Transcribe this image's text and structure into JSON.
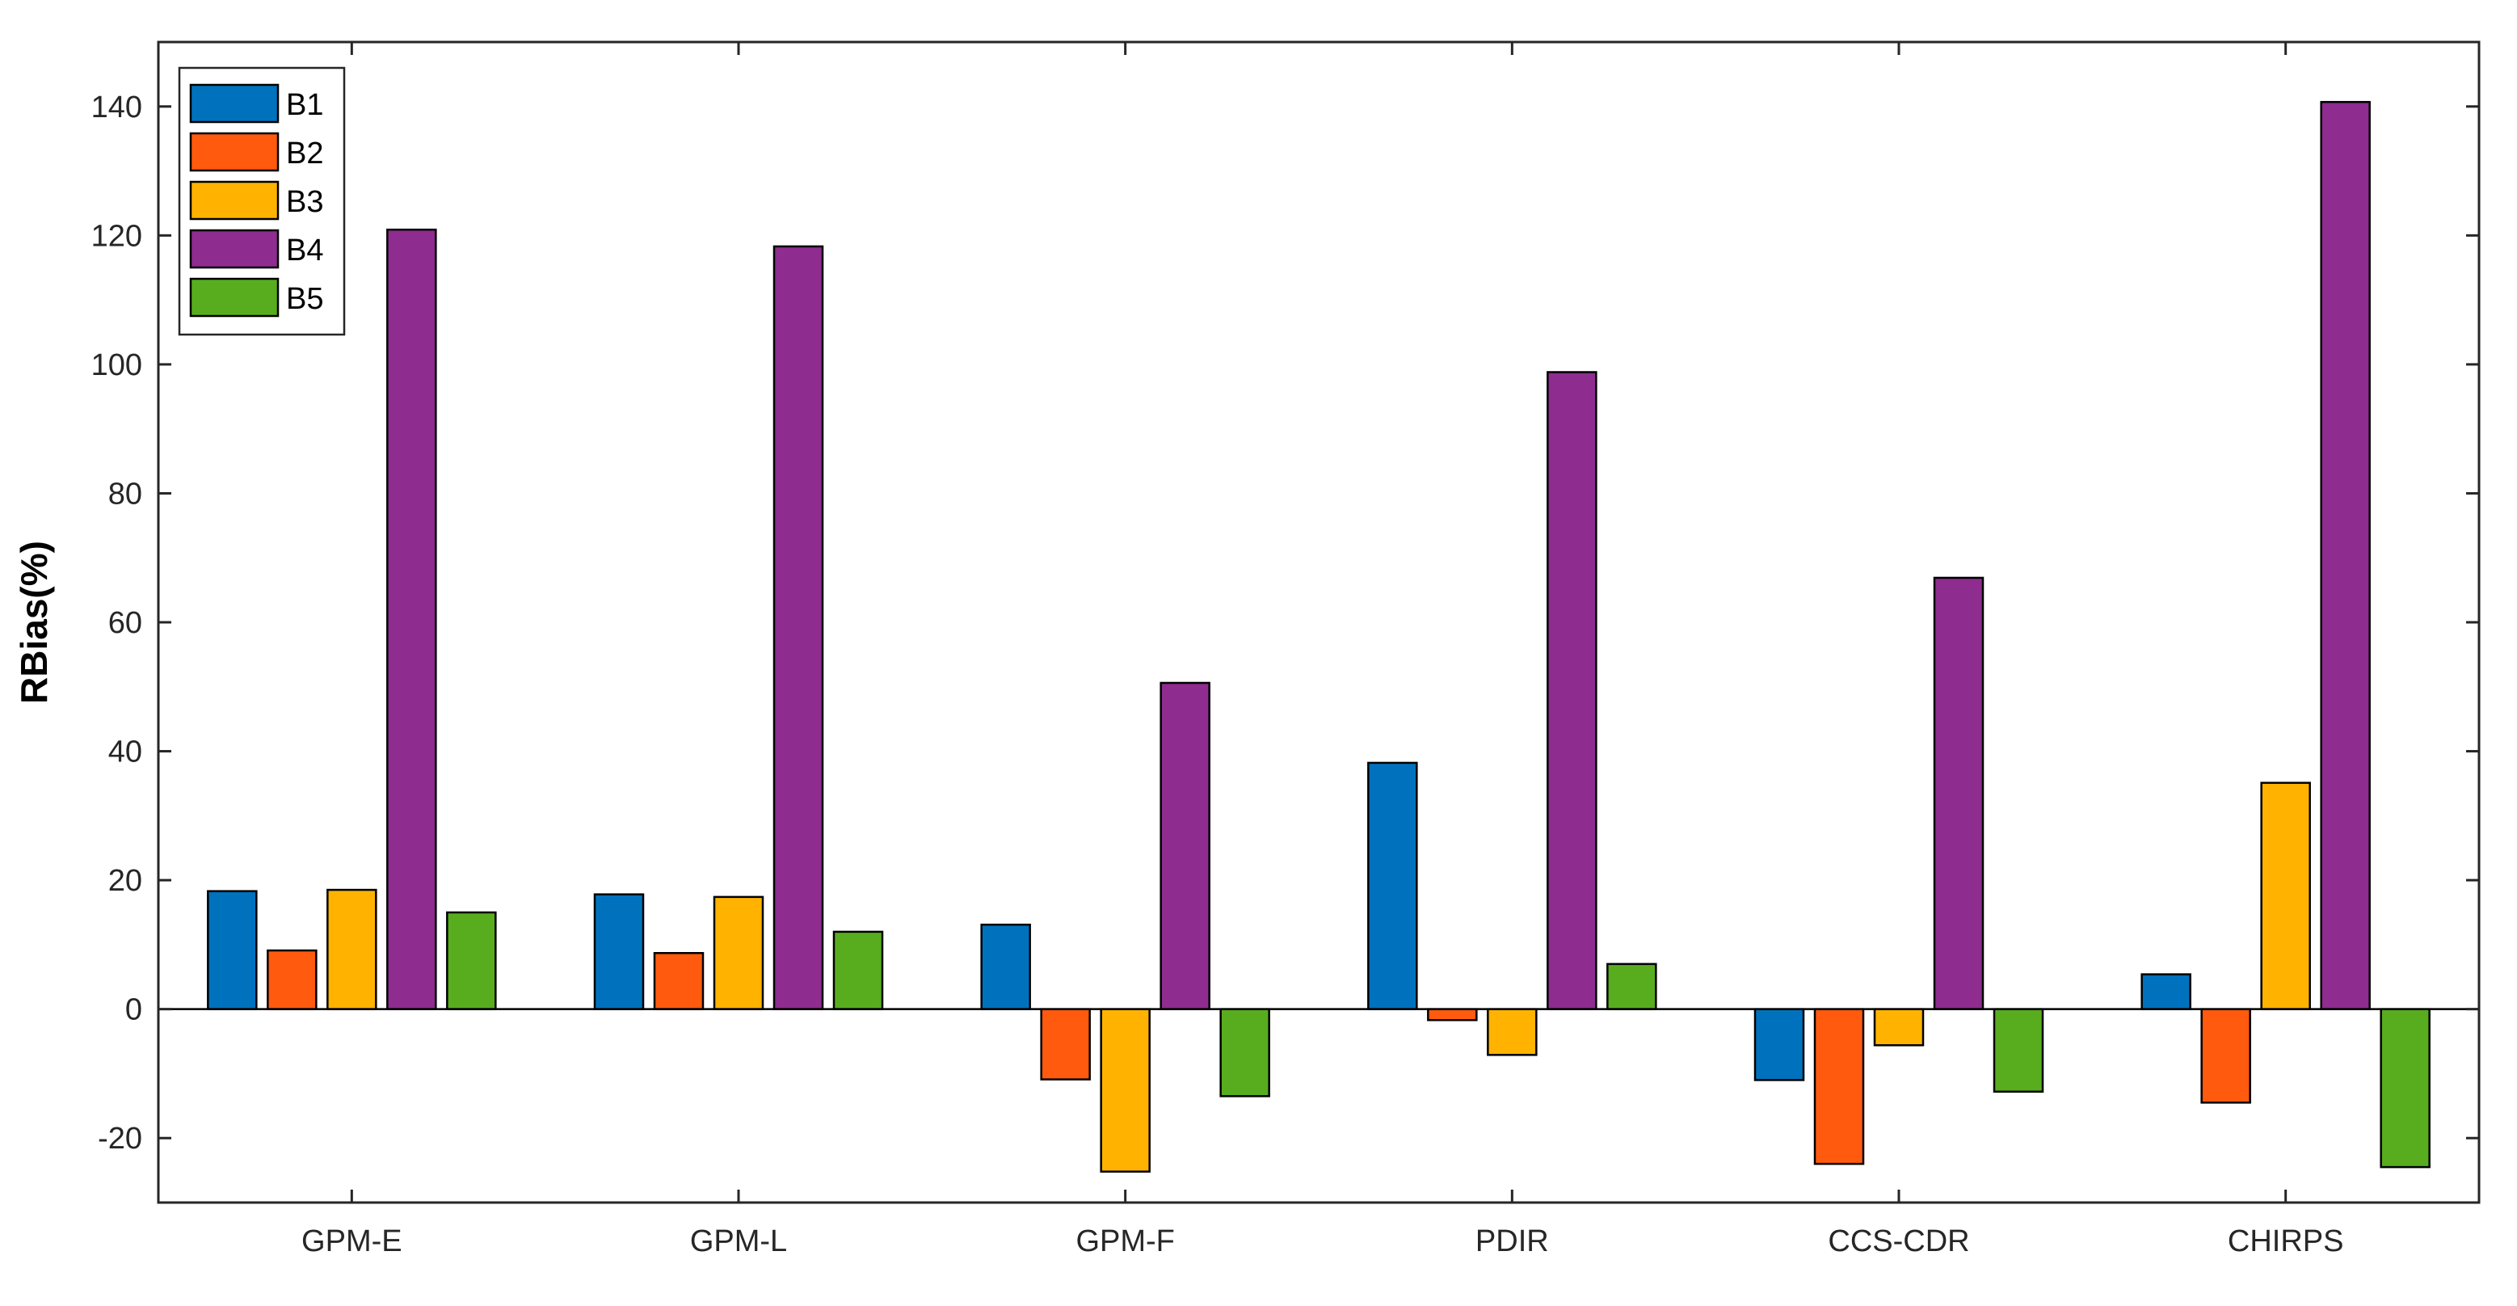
{
  "chart_data": {
    "type": "bar",
    "title": "",
    "xlabel": "",
    "ylabel": "RBias(%)",
    "ylim": [
      -30,
      150
    ],
    "yticks": [
      -20,
      0,
      20,
      40,
      60,
      80,
      100,
      120,
      140
    ],
    "categories": [
      "GPM-E",
      "GPM-L",
      "GPM-F",
      "PDIR",
      "CCS-CDR",
      "CHIRPS"
    ],
    "series": [
      {
        "name": "B1",
        "color": "#0072BD",
        "values": [
          18.3,
          17.8,
          13.1,
          38.2,
          -11.0,
          5.4
        ]
      },
      {
        "name": "B2",
        "color": "#FF5A0E",
        "values": [
          9.1,
          8.7,
          -10.9,
          -1.7,
          -24.0,
          -14.5
        ]
      },
      {
        "name": "B3",
        "color": "#FFB300",
        "values": [
          18.5,
          17.4,
          -25.2,
          -7.1,
          -5.6,
          35.1
        ]
      },
      {
        "name": "B4",
        "color": "#8E2C8F",
        "values": [
          120.9,
          118.3,
          50.6,
          98.8,
          66.9,
          140.7
        ]
      },
      {
        "name": "B5",
        "color": "#58AD1E",
        "values": [
          15.0,
          12.0,
          -13.5,
          7.0,
          -12.8,
          -24.5
        ]
      }
    ],
    "legend_position": "top-left",
    "grid": false
  }
}
